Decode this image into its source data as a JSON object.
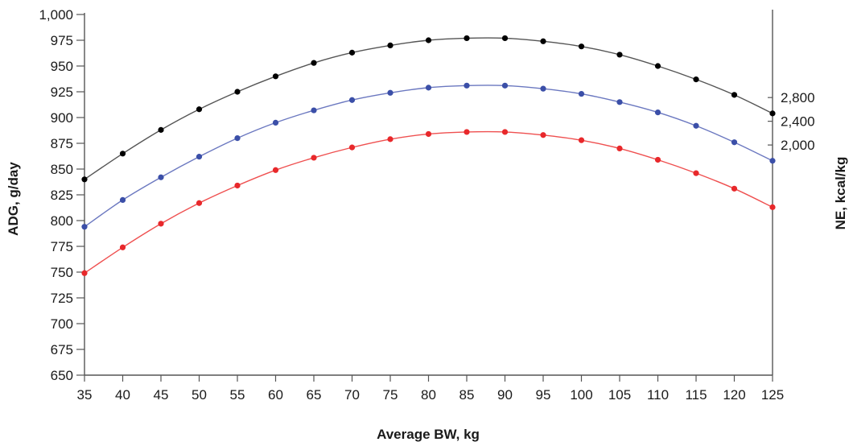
{
  "chart_data": {
    "type": "line",
    "title": "",
    "xlabel": "Average BW, kg",
    "ylabel": "ADG, g/day",
    "y2label": "NE, kcal/kg",
    "x": [
      35,
      40,
      45,
      50,
      55,
      60,
      65,
      70,
      75,
      80,
      85,
      90,
      95,
      100,
      105,
      110,
      115,
      120,
      125
    ],
    "xlim": [
      35,
      125
    ],
    "ylim": [
      650,
      1000
    ],
    "y2lim": [
      -1880,
      4200
    ],
    "y_ticks": [
      650,
      675,
      700,
      725,
      750,
      775,
      800,
      825,
      850,
      875,
      900,
      925,
      950,
      975,
      1000
    ],
    "y_tick_labels": [
      "650",
      "675",
      "700",
      "725",
      "750",
      "775",
      "800",
      "825",
      "850",
      "875",
      "900",
      "925",
      "950",
      "975",
      "1,000"
    ],
    "y2_ticks": [
      2000,
      2400,
      2800
    ],
    "y2_tick_labels": [
      "2,000",
      "2,400",
      "2,800"
    ],
    "x_tick_labels": [
      "35",
      "40",
      "45",
      "50",
      "55",
      "60",
      "65",
      "70",
      "75",
      "80",
      "85",
      "90",
      "95",
      "100",
      "105",
      "110",
      "115",
      "120",
      "125"
    ],
    "grid": false,
    "legend": "none",
    "series": [
      {
        "color": "#000000",
        "line_color": "#555555",
        "right_axis_value": 2800,
        "values": [
          840,
          865,
          888,
          908,
          925,
          940,
          953,
          963,
          970,
          975,
          977,
          977,
          974,
          969,
          961,
          950,
          937,
          922,
          904
        ]
      },
      {
        "color": "#3b4fa8",
        "line_color": "#6b78c0",
        "right_axis_value": 2400,
        "values": [
          794,
          820,
          842,
          862,
          880,
          895,
          907,
          917,
          924,
          929,
          931,
          931,
          928,
          923,
          915,
          905,
          892,
          876,
          858
        ]
      },
      {
        "color": "#e8282b",
        "line_color": "#ef5050",
        "right_axis_value": 2000,
        "values": [
          749,
          774,
          797,
          817,
          834,
          849,
          861,
          871,
          879,
          884,
          886,
          886,
          883,
          878,
          870,
          859,
          846,
          831,
          813
        ]
      }
    ]
  }
}
